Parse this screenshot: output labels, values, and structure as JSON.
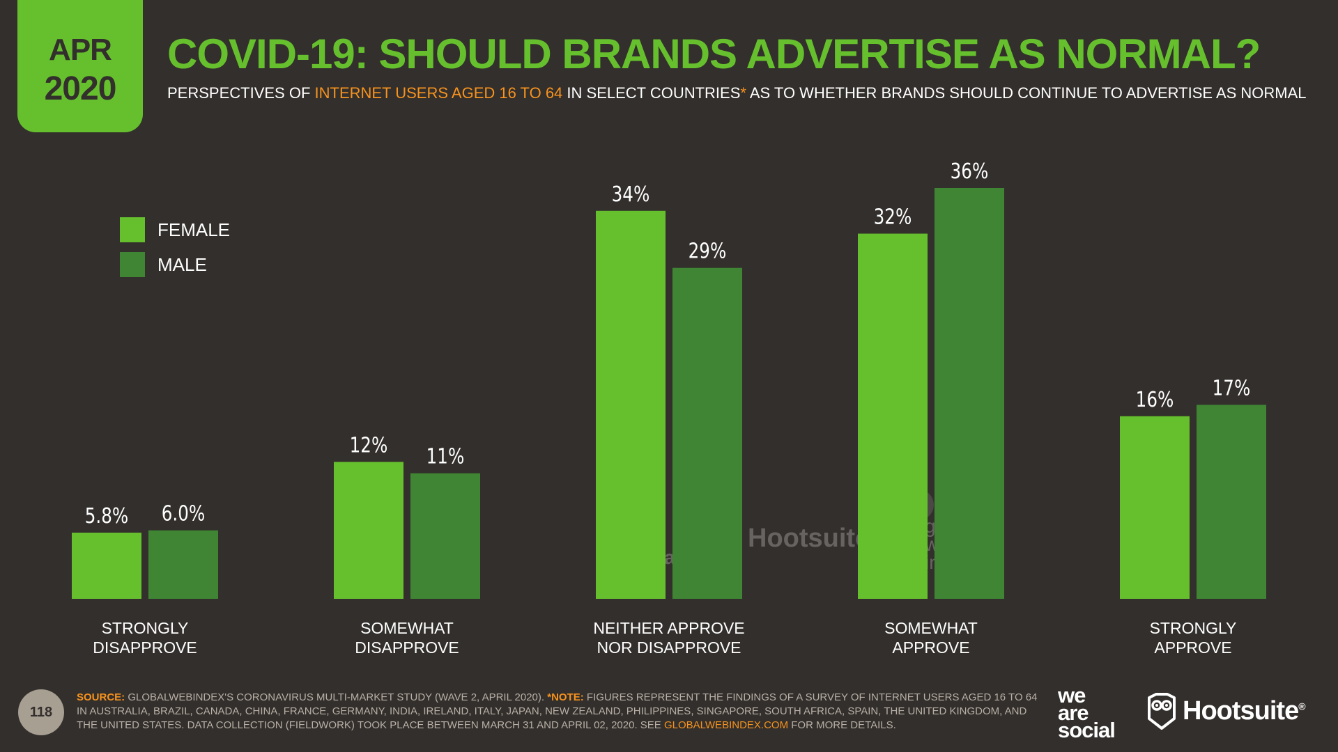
{
  "badge": {
    "month": "APR",
    "year": "2020"
  },
  "title": "COVID-19: SHOULD BRANDS ADVERTISE AS NORMAL?",
  "subtitle": {
    "part1": "PERSPECTIVES OF ",
    "highlight": "INTERNET USERS AGED 16 TO 64",
    "part2": " IN SELECT COUNTRIES",
    "asterisk": "*",
    "part3": " AS TO WHETHER BRANDS SHOULD CONTINUE TO ADVERTISE AS NORMAL"
  },
  "colors": {
    "female": "#66c02e",
    "male": "#3f8534",
    "accent": "#f7931e",
    "background": "#332f2c"
  },
  "chart_data": {
    "type": "bar",
    "title": "COVID-19: SHOULD BRANDS ADVERTISE AS NORMAL?",
    "xlabel": "",
    "ylabel": "",
    "ylim": [
      0,
      36
    ],
    "grid": false,
    "legend": "top-left",
    "categories": [
      [
        "STRONGLY",
        "DISAPPROVE"
      ],
      [
        "SOMEWHAT",
        "DISAPPROVE"
      ],
      [
        "NEITHER APPROVE",
        "NOR DISAPPROVE"
      ],
      [
        "SOMEWHAT",
        "APPROVE"
      ],
      [
        "STRONGLY",
        "APPROVE"
      ]
    ],
    "series": [
      {
        "name": "FEMALE",
        "color": "#66c02e",
        "values": [
          5.8,
          12,
          34,
          32,
          16
        ],
        "labels": [
          "5.8%",
          "12%",
          "34%",
          "32%",
          "16%"
        ]
      },
      {
        "name": "MALE",
        "color": "#3f8534",
        "values": [
          6.0,
          11,
          29,
          36,
          17
        ],
        "labels": [
          "6.0%",
          "11%",
          "29%",
          "36%",
          "17%"
        ]
      }
    ]
  },
  "watermarks": {
    "we_are_social": [
      "we",
      "are",
      "social"
    ],
    "hootsuite": "Hootsuite",
    "global_web_index": [
      "global",
      "web",
      "index"
    ]
  },
  "footer": {
    "page_number": "118",
    "source_label": "SOURCE:",
    "source_text": " GLOBALWEBINDEX'S CORONAVIRUS MULTI-MARKET STUDY (WAVE 2, APRIL 2020). ",
    "note_label": "*NOTE:",
    "note_text": " FIGURES REPRESENT THE FINDINGS OF A SURVEY OF INTERNET USERS AGED 16 TO 64 IN AUSTRALIA, BRAZIL, CANADA, CHINA, FRANCE, GERMANY, INDIA, IRELAND, ITALY, JAPAN, NEW ZEALAND, PHILIPPINES, SINGAPORE, SOUTH AFRICA, SPAIN, THE UNITED KINGDOM, AND THE UNITED STATES. DATA COLLECTION (FIELDWORK) TOOK PLACE BETWEEN MARCH 31 AND APRIL 02, 2020. SEE ",
    "link": "GLOBALWEBINDEX.COM",
    "tail": " FOR MORE DETAILS."
  },
  "logos": {
    "we_are_social": [
      "we",
      "are",
      "social"
    ],
    "hootsuite": "Hootsuite",
    "reg_mark": "®"
  }
}
